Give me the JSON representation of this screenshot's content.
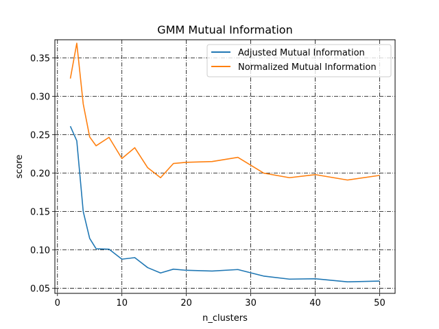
{
  "chart_data": {
    "type": "line",
    "title": "GMM Mutual Information",
    "xlabel": "n_clusters",
    "ylabel": "score",
    "xlim": [
      -0.4,
      52.4
    ],
    "ylim": [
      0.0435,
      0.3735
    ],
    "xticks": [
      0,
      10,
      20,
      30,
      40,
      50
    ],
    "yticks": [
      0.05,
      0.1,
      0.15,
      0.2,
      0.25,
      0.3,
      0.35
    ],
    "grid": true,
    "legend_position": "top-right",
    "series": [
      {
        "name": "Adjusted Mutual Information",
        "color": "#1f77b4",
        "x": [
          2,
          3,
          4,
          5,
          6,
          8,
          10,
          12,
          14,
          16,
          18,
          20,
          24,
          28,
          32,
          36,
          40,
          45,
          50
        ],
        "y": [
          0.261,
          0.242,
          0.15,
          0.115,
          0.1015,
          0.101,
          0.088,
          0.09,
          0.077,
          0.07,
          0.075,
          0.0735,
          0.0725,
          0.0745,
          0.066,
          0.062,
          0.0625,
          0.0585,
          0.0595
        ]
      },
      {
        "name": "Normalized Mutual Information",
        "color": "#ff7f0e",
        "x": [
          2,
          3,
          4,
          5,
          6,
          8,
          10,
          12,
          14,
          16,
          18,
          20,
          24,
          28,
          32,
          36,
          40,
          45,
          50
        ],
        "y": [
          0.323,
          0.369,
          0.29,
          0.247,
          0.2355,
          0.2465,
          0.219,
          0.233,
          0.207,
          0.194,
          0.2125,
          0.214,
          0.215,
          0.2205,
          0.2,
          0.194,
          0.198,
          0.191,
          0.197
        ]
      }
    ]
  }
}
